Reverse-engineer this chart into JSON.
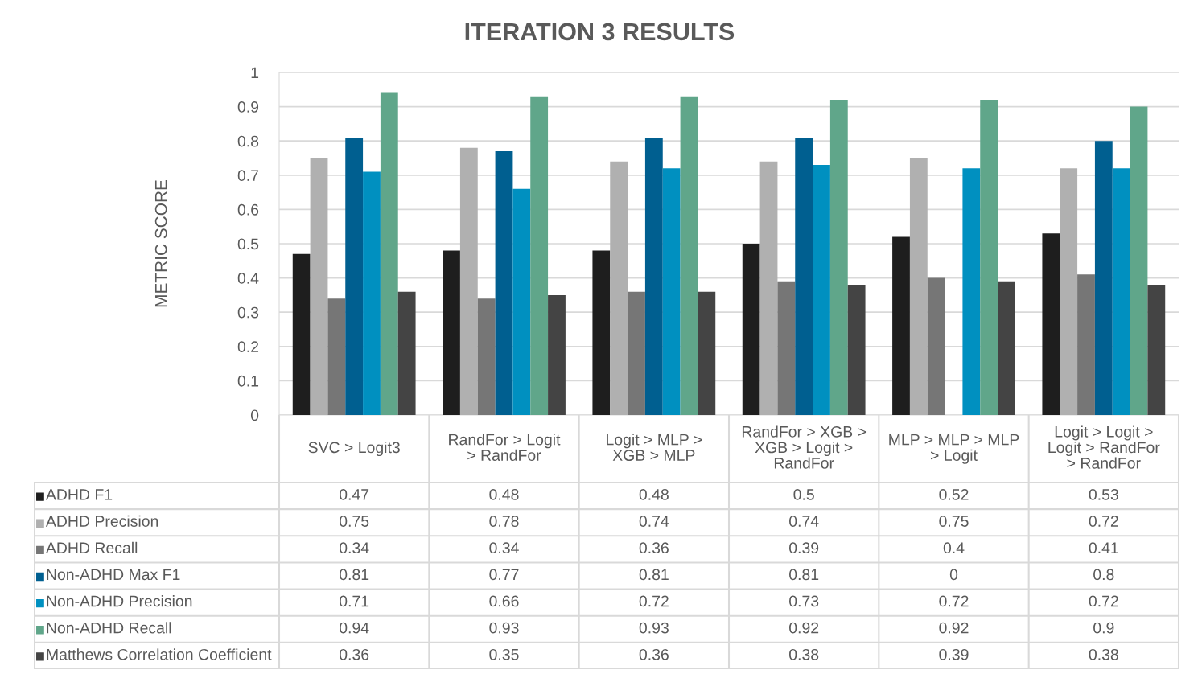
{
  "chart_data": {
    "type": "bar",
    "title": "ITERATION 3 RESULTS",
    "ylabel": "METRIC SCORE",
    "categories": [
      "SVC > Logit3",
      "RandFor > Logit > RandFor",
      "Logit > MLP > XGB > MLP",
      "RandFor > XGB > XGB > Logit > RandFor",
      "MLP > MLP > MLP > Logit",
      "Logit > Logit > Logit > RandFor > RandFor"
    ],
    "series": [
      {
        "name": "ADHD F1",
        "color": "#1e1e1e",
        "values": [
          0.47,
          0.48,
          0.48,
          0.5,
          0.52,
          0.53
        ]
      },
      {
        "name": "ADHD Precision",
        "color": "#b0b0b0",
        "values": [
          0.75,
          0.78,
          0.74,
          0.74,
          0.75,
          0.72
        ]
      },
      {
        "name": "ADHD Recall",
        "color": "#767676",
        "values": [
          0.34,
          0.34,
          0.36,
          0.39,
          0.4,
          0.41
        ]
      },
      {
        "name": "Non-ADHD Max F1",
        "color": "#005f90",
        "values": [
          0.81,
          0.77,
          0.81,
          0.81,
          0,
          0.8
        ]
      },
      {
        "name": "Non-ADHD Precision",
        "color": "#0090c0",
        "values": [
          0.71,
          0.66,
          0.72,
          0.73,
          0.72,
          0.72
        ]
      },
      {
        "name": "Non-ADHD Recall",
        "color": "#60a68a",
        "values": [
          0.94,
          0.93,
          0.93,
          0.92,
          0.92,
          0.9
        ]
      },
      {
        "name": "Matthews Correlation Coefficient",
        "color": "#444444",
        "values": [
          0.36,
          0.35,
          0.36,
          0.38,
          0.39,
          0.38
        ]
      }
    ],
    "ylim": [
      0,
      1
    ],
    "yticks": [
      0,
      {
        "value": 0.1,
        "label": "0.1"
      },
      {
        "value": 0.2,
        "label": "0.2"
      },
      {
        "value": 0.3,
        "label": "0.3"
      },
      {
        "value": 0.4,
        "label": "0.4"
      },
      {
        "value": 0.5,
        "label": "0.5"
      },
      {
        "value": 0.6,
        "label": "0.6"
      },
      {
        "value": 0.7,
        "label": "0.7"
      },
      {
        "value": 0.8,
        "label": "0.8"
      },
      {
        "value": 0.9,
        "label": "0.9"
      },
      1
    ],
    "grid": "y",
    "legend": "bottom",
    "data_labels": true
  }
}
